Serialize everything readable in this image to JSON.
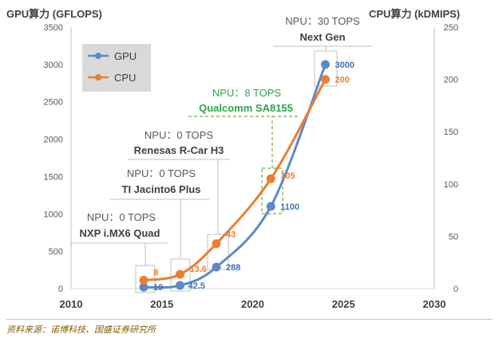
{
  "chart_data": {
    "type": "line",
    "y_left_title": "GPU算力 (GFLOPS)",
    "y_right_title": "CPU算力 (kDMIPS)",
    "y_left_ticks": [
      0,
      500,
      1000,
      1500,
      2000,
      2500,
      3000,
      3500
    ],
    "y_right_ticks": [
      0,
      50,
      100,
      150,
      200,
      250
    ],
    "x_ticks": [
      2010,
      2015,
      2020,
      2025,
      2030
    ],
    "xlim": [
      2010,
      2030
    ],
    "ylim_left": [
      0,
      3500
    ],
    "ylim_right": [
      0,
      250
    ],
    "series": [
      {
        "name": "GPU",
        "color": "#5b8ac6",
        "axis": "left",
        "x": [
          2014,
          2016,
          2018,
          2021,
          2024
        ],
        "values": [
          19,
          42.5,
          288,
          1100,
          3000
        ],
        "labels": [
          "19",
          "42.5",
          "288",
          "1100",
          "3000"
        ]
      },
      {
        "name": "CPU",
        "color": "#ed7d31",
        "axis": "right",
        "x": [
          2014,
          2016,
          2018,
          2021,
          2024
        ],
        "values": [
          8,
          13.6,
          43,
          105,
          200
        ],
        "labels": [
          "8",
          "13.6",
          "43",
          "105",
          "200"
        ]
      }
    ],
    "annotations": [
      {
        "npu": "NPU：0 TOPS",
        "chip": "NXP i.MX6 Quad",
        "color": "#595959"
      },
      {
        "npu": "NPU：0 TOPS",
        "chip": "TI Jacinto6 Plus",
        "color": "#595959"
      },
      {
        "npu": "NPU：0 TOPS",
        "chip": "Renesas R-Car H3",
        "color": "#595959"
      },
      {
        "npu": "NPU：8 TOPS",
        "chip": "Qualcomm SA8155",
        "color": "#2ea44f"
      },
      {
        "npu": "NPU：30 TOPS",
        "chip": "Next Gen",
        "color": "#595959"
      }
    ]
  },
  "source": "资料来源：诺博科技、国盛证券研究所"
}
